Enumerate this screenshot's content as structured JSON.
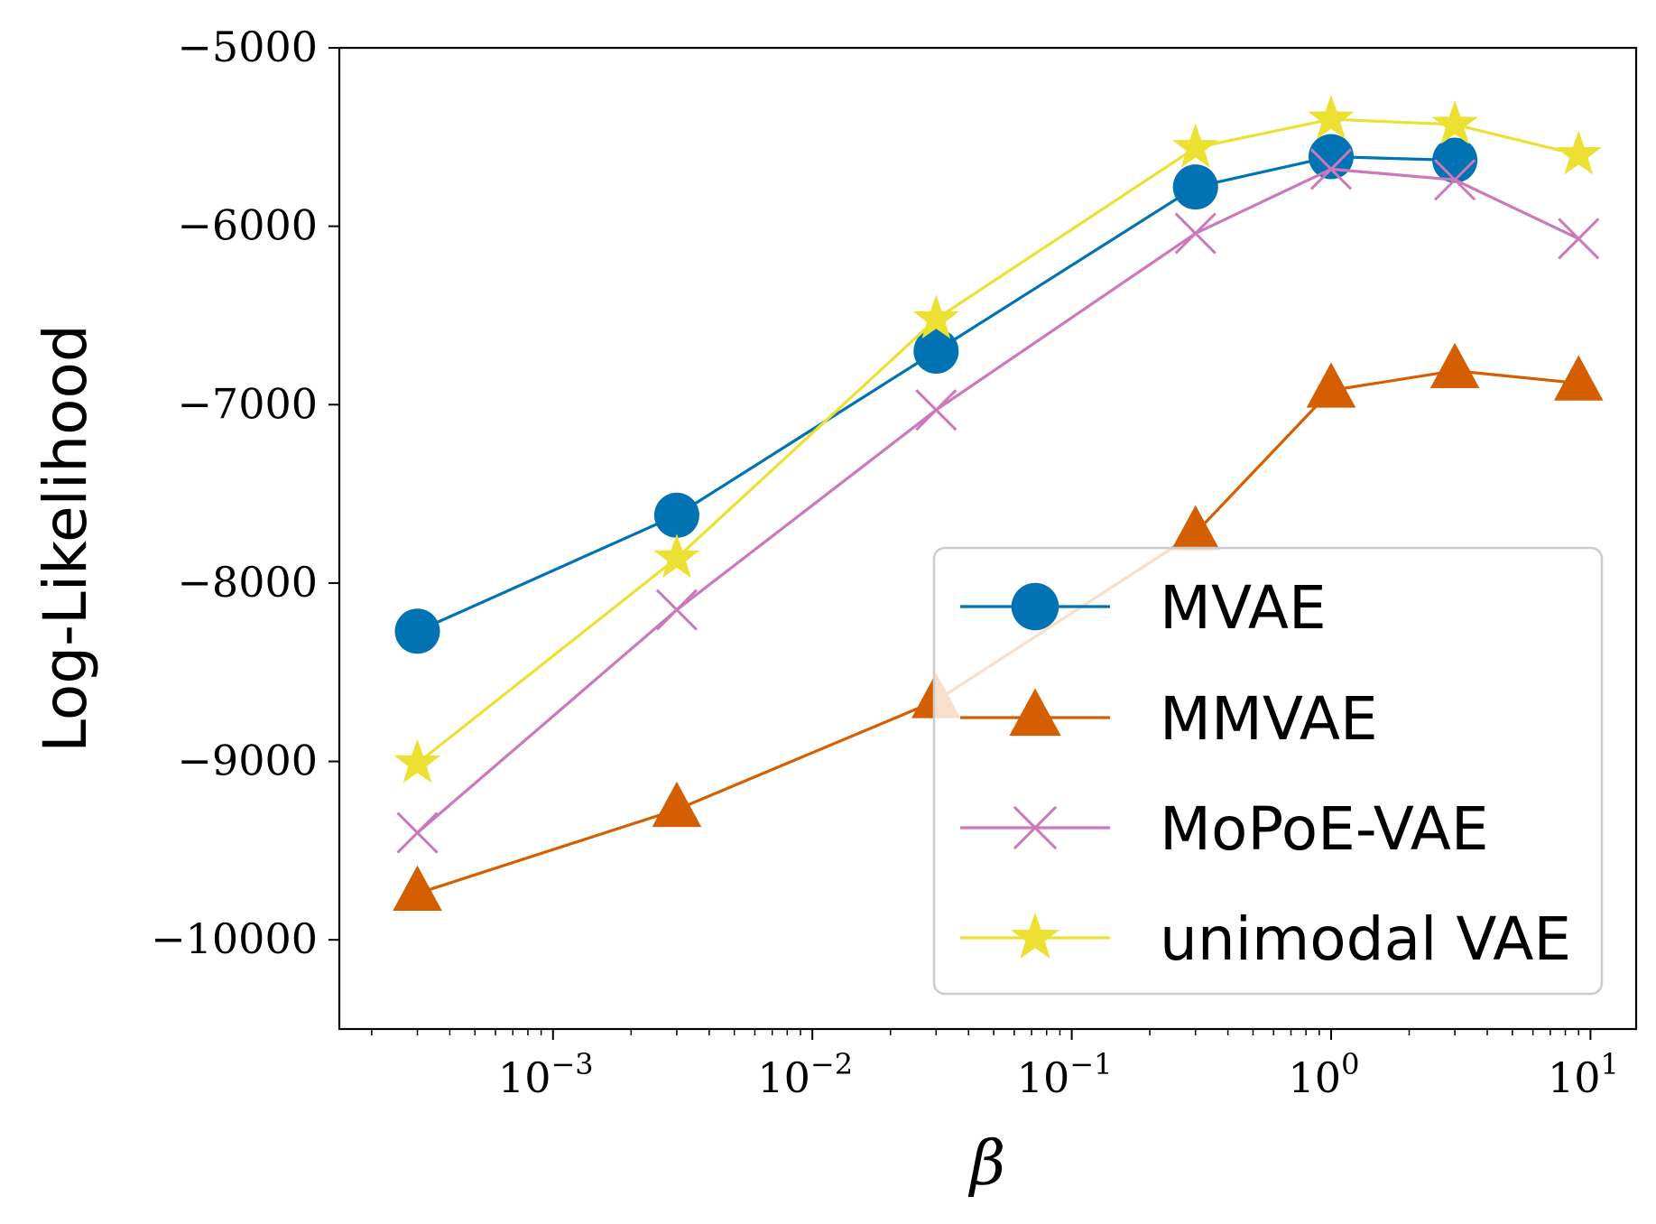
{
  "chart_data": {
    "type": "line",
    "title": "",
    "xlabel": "β",
    "ylabel": "Log-Likelihood",
    "x_scale": "log",
    "xlim": [
      0.00015,
      15
    ],
    "ylim": [
      -10500,
      -5000
    ],
    "x_ticks": [
      {
        "value": 0.001,
        "base": "10",
        "exp": "−3"
      },
      {
        "value": 0.01,
        "base": "10",
        "exp": "−2"
      },
      {
        "value": 0.1,
        "base": "10",
        "exp": "−1"
      },
      {
        "value": 1,
        "base": "10",
        "exp": "0"
      },
      {
        "value": 10,
        "base": "10",
        "exp": "1"
      }
    ],
    "y_ticks": [
      {
        "value": -5000,
        "label": "−5000"
      },
      {
        "value": -6000,
        "label": "−6000"
      },
      {
        "value": -7000,
        "label": "−7000"
      },
      {
        "value": -8000,
        "label": "−8000"
      },
      {
        "value": -9000,
        "label": "−9000"
      },
      {
        "value": -10000,
        "label": "−10000"
      }
    ],
    "x": [
      0.0003,
      0.003,
      0.03,
      0.3,
      1,
      3,
      9
    ],
    "grid": false,
    "legend_position": "lower-right",
    "series": [
      {
        "name": "MVAE",
        "marker": "circle",
        "color": "#0173b2",
        "values": [
          -8270,
          -7620,
          -6700,
          -5780,
          -5610,
          -5630,
          null
        ]
      },
      {
        "name": "MMVAE",
        "marker": "triangle",
        "color": "#d55e00",
        "values": [
          -9740,
          -9270,
          -8660,
          -7720,
          -6920,
          -6810,
          -6880
        ]
      },
      {
        "name": "MoPoE-VAE",
        "marker": "x",
        "color": "#cc78bc",
        "values": [
          -9400,
          -8150,
          -7030,
          -6040,
          -5680,
          -5740,
          -6070
        ]
      },
      {
        "name": "unimodal VAE",
        "marker": "star",
        "color": "#ece133",
        "values": [
          -9010,
          -7860,
          -6520,
          -5560,
          -5400,
          -5430,
          -5600
        ]
      }
    ]
  }
}
